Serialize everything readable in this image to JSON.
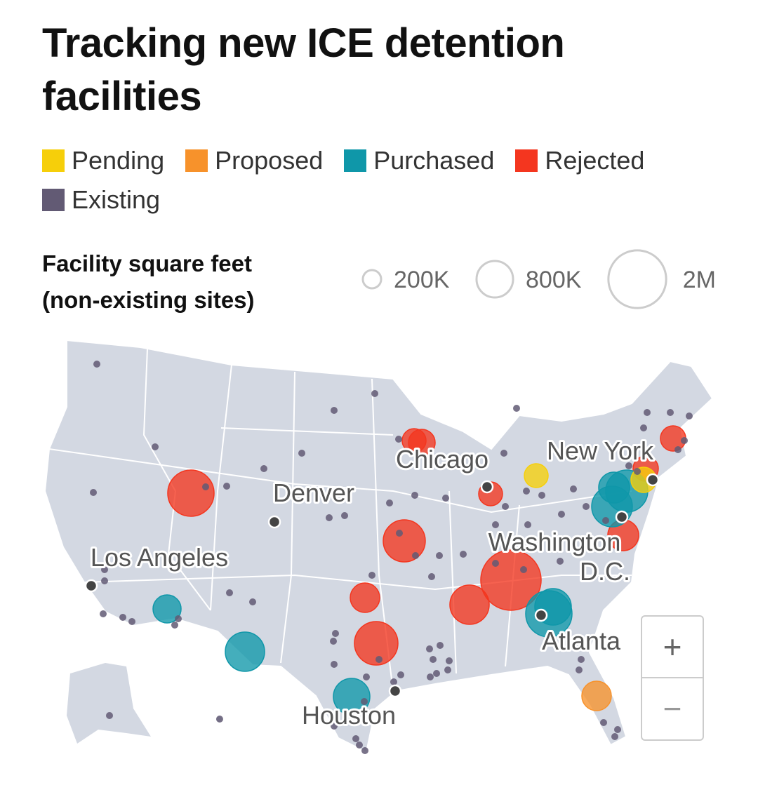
{
  "title": "Tracking new ICE detention facilities",
  "legend": [
    {
      "label": "Pending",
      "color": "#f6cf0a"
    },
    {
      "label": "Proposed",
      "color": "#f7922b"
    },
    {
      "label": "Purchased",
      "color": "#0f97a9"
    },
    {
      "label": "Rejected",
      "color": "#f4361f"
    },
    {
      "label": "Existing",
      "color": "#625a74"
    }
  ],
  "size_legend": {
    "title_lines": [
      "Facility square feet",
      "(non-existing sites)"
    ],
    "sizes": [
      {
        "value": 200000,
        "label": "200K"
      },
      {
        "value": 800000,
        "label": "800K"
      },
      {
        "value": 2000000,
        "label": "2M"
      }
    ]
  },
  "cities": [
    "Chicago",
    "Denver",
    "Los Angeles",
    "New York",
    "Washington",
    "D.C.",
    "Atlanta",
    "Houston"
  ],
  "zoom": {
    "in": "+",
    "out": "−"
  }
}
